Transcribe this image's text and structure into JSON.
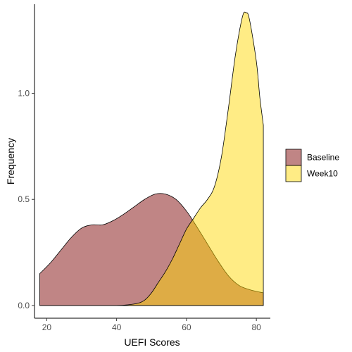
{
  "chart_data": {
    "type": "area",
    "title": "",
    "xlabel": "UEFI Scores",
    "ylabel": "Frequency",
    "xlim": [
      16.5,
      84
    ],
    "ylim": [
      -0.06,
      1.42
    ],
    "x_ticks": [
      20,
      40,
      60,
      80
    ],
    "x_tick_labels": [
      "20",
      "40",
      "60",
      "80"
    ],
    "y_ticks": [
      0.0,
      0.5,
      1.0
    ],
    "y_tick_labels": [
      "0.0",
      "0.5",
      "1.0"
    ],
    "grid": false,
    "legend_position": "right",
    "series": [
      {
        "name": "Baseline",
        "color": "#bd7e7e",
        "opacity": 0.95,
        "points": [
          [
            18,
            0.15
          ],
          [
            21,
            0.2
          ],
          [
            24,
            0.26
          ],
          [
            27,
            0.32
          ],
          [
            30,
            0.365
          ],
          [
            33,
            0.38
          ],
          [
            36,
            0.38
          ],
          [
            39,
            0.4
          ],
          [
            42,
            0.43
          ],
          [
            45,
            0.465
          ],
          [
            48,
            0.5
          ],
          [
            51,
            0.525
          ],
          [
            54,
            0.525
          ],
          [
            57,
            0.5
          ],
          [
            60,
            0.445
          ],
          [
            63,
            0.37
          ],
          [
            66,
            0.29
          ],
          [
            69,
            0.21
          ],
          [
            72,
            0.14
          ],
          [
            75,
            0.095
          ],
          [
            78,
            0.075
          ],
          [
            81,
            0.063
          ],
          [
            82,
            0.06
          ]
        ]
      },
      {
        "name": "Week10",
        "color": "#ffd700",
        "opacity": 0.48,
        "points": [
          [
            18,
            0.0
          ],
          [
            24,
            0.0
          ],
          [
            30,
            0.0
          ],
          [
            36,
            0.0
          ],
          [
            40,
            0.0
          ],
          [
            43,
            0.003
          ],
          [
            46,
            0.01
          ],
          [
            48,
            0.025
          ],
          [
            50,
            0.06
          ],
          [
            52,
            0.11
          ],
          [
            54,
            0.16
          ],
          [
            56,
            0.22
          ],
          [
            58,
            0.29
          ],
          [
            60,
            0.36
          ],
          [
            62,
            0.41
          ],
          [
            64,
            0.46
          ],
          [
            66,
            0.5
          ],
          [
            68,
            0.56
          ],
          [
            70,
            0.7
          ],
          [
            72,
            0.93
          ],
          [
            74,
            1.18
          ],
          [
            76,
            1.36
          ],
          [
            77,
            1.38
          ],
          [
            78,
            1.35
          ],
          [
            80,
            1.15
          ],
          [
            81,
            0.98
          ],
          [
            82,
            0.85
          ]
        ]
      }
    ]
  }
}
